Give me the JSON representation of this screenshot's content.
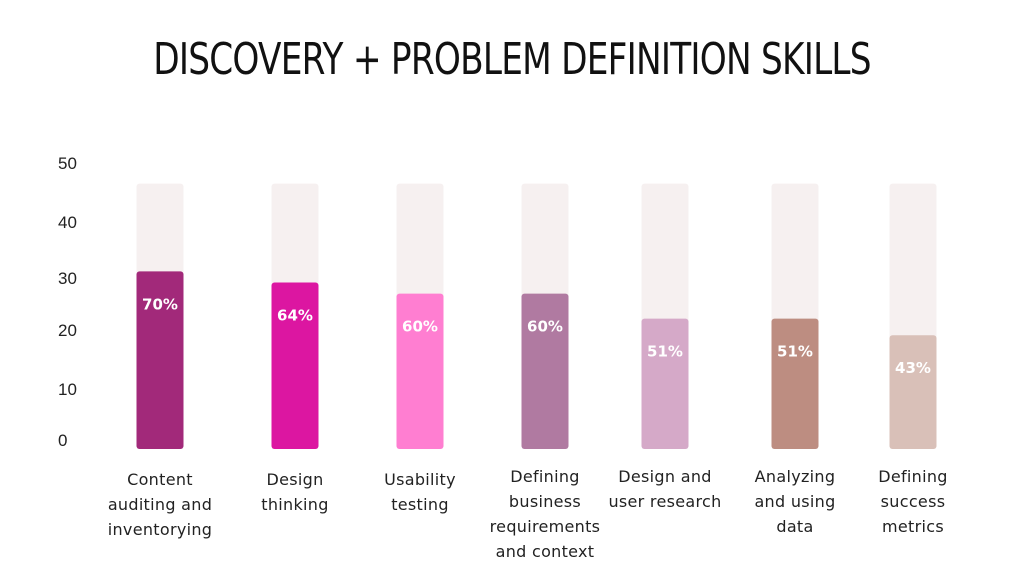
{
  "title": "DISCOVERY + PROBLEM DEFINITION SKILLS",
  "chart_data": {
    "type": "bar",
    "title": "DISCOVERY + PROBLEM DEFINITION SKILLS",
    "categories": [
      "Content auditing and inventorying",
      "Design thinking",
      "Usability testing",
      "Defining business requirements and context",
      "Design and user research",
      "Analyzing and using data",
      "Defining success metrics"
    ],
    "values": [
      32,
      30,
      28,
      28,
      23.5,
      23.5,
      20.5
    ],
    "value_labels": [
      "70%",
      "64%",
      "60%",
      "60%",
      "51%",
      "51%",
      "43%"
    ],
    "bar_colors": [
      "#a2297a",
      "#dc16a1",
      "#ff7ed1",
      "#b07aa1",
      "#d5a9c8",
      "#bd8d81",
      "#d9c0b8"
    ],
    "track_color": "#f6f0f0",
    "track_max": 48,
    "ylim": [
      0,
      50
    ],
    "yticks": [
      0,
      10,
      20,
      30,
      40,
      50
    ],
    "xlabel": "",
    "ylabel": "",
    "grid": false,
    "legend": "none"
  }
}
